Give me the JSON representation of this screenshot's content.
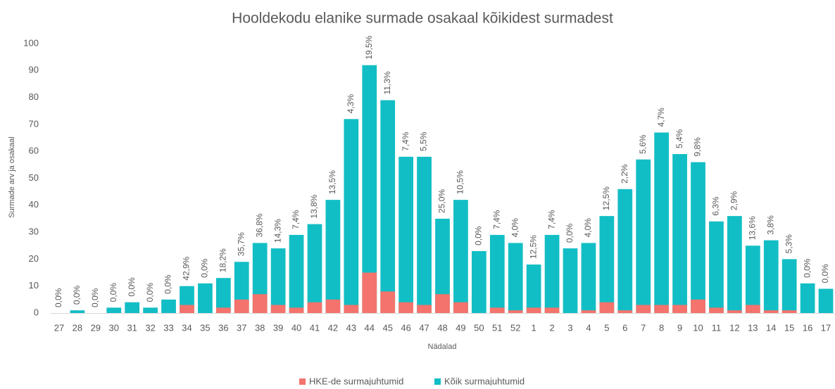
{
  "chart_data": {
    "type": "bar",
    "overlap": true,
    "title": "Hooldekodu elanike surmade osakaal kõikidest surmadest",
    "x_label": "Nädalad",
    "y_label": "Surmade arv ja osakaal",
    "categories": [
      "27",
      "28",
      "29",
      "30",
      "31",
      "32",
      "33",
      "34",
      "35",
      "36",
      "37",
      "38",
      "39",
      "40",
      "41",
      "42",
      "43",
      "44",
      "45",
      "46",
      "47",
      "48",
      "49",
      "50",
      "51",
      "52",
      "1",
      "2",
      "3",
      "4",
      "5",
      "6",
      "7",
      "8",
      "9",
      "10",
      "11",
      "12",
      "13",
      "14",
      "15",
      "16",
      "17"
    ],
    "series": [
      {
        "name": "HKE-de surmajuhtumid",
        "color": "#f4736c",
        "values": [
          0,
          0,
          0,
          0,
          0,
          0,
          0,
          3,
          0,
          2,
          5,
          7,
          3,
          2,
          4,
          5,
          3,
          15,
          8,
          4,
          3,
          7,
          4,
          0,
          2,
          1,
          2,
          2,
          0,
          1,
          4,
          1,
          3,
          3,
          3,
          5,
          2,
          1,
          3,
          1,
          1,
          0,
          0
        ]
      },
      {
        "name": "Kõik surmajuhtumid",
        "color": "#12bec5",
        "values": [
          0,
          1,
          0,
          2,
          4,
          2,
          5,
          10,
          11,
          13,
          19,
          26,
          24,
          29,
          33,
          42,
          72,
          92,
          79,
          58,
          58,
          35,
          42,
          23,
          29,
          26,
          18,
          29,
          24,
          26,
          36,
          46,
          57,
          67,
          59,
          56,
          34,
          36,
          25,
          27,
          20,
          11,
          9
        ]
      }
    ],
    "annotations": [
      "0,0%",
      "0,0%",
      "0,0%",
      "0,0%",
      "0,0%",
      "0,0%",
      "0,0%",
      "42,9%",
      "0,0%",
      "18,2%",
      "35,7%",
      "36,8%",
      "14,3%",
      "7,4%",
      "13,8%",
      "13,5%",
      "4,3%",
      "19,5%",
      "11,3%",
      "7,4%",
      "5,5%",
      "25,0%",
      "10,5%",
      "0,0%",
      "7,4%",
      "4,0%",
      "12,5%",
      "7,4%",
      "0,0%",
      "4,0%",
      "12,5%",
      "2,2%",
      "5,6%",
      "4,7%",
      "5,4%",
      "9,8%",
      "6,3%",
      "2,9%",
      "13,6%",
      "3,8%",
      "5,3%",
      "0,0%",
      "0,0%"
    ],
    "ylim": [
      0,
      100
    ],
    "yticks": [
      0,
      10,
      20,
      30,
      40,
      50,
      60,
      70,
      80,
      90,
      100
    ],
    "grid": false,
    "legend": "bottom"
  }
}
